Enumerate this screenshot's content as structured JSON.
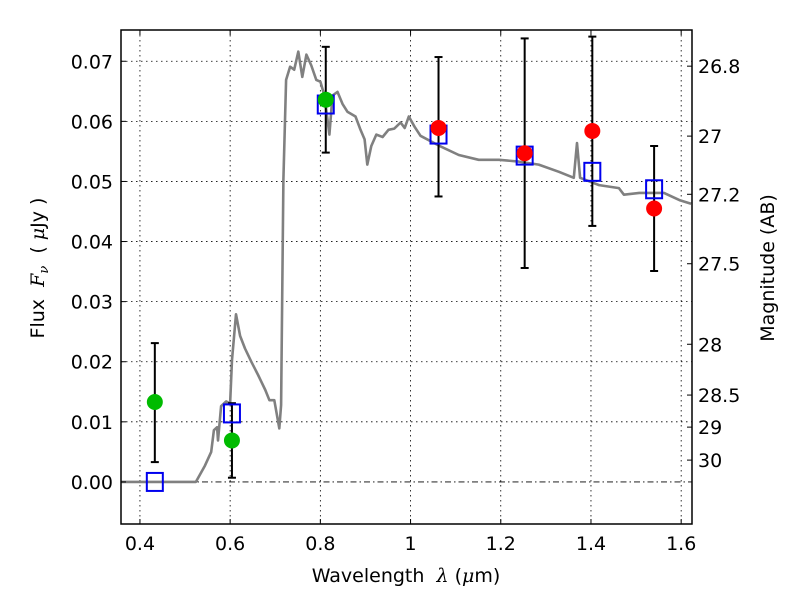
{
  "chart_data": {
    "type": "scatter",
    "title": "",
    "xlabel": "Wavelength  λ (μm)",
    "ylabel": "Flux  F_ν  ( μJy )",
    "ylabel_parts": {
      "prefix": "Flux  ",
      "symbol": "F",
      "subscript": "ν",
      "unit_open": "  ( ",
      "unit_mu": "μ",
      "unit_rest": "Jy )"
    },
    "xlabel_parts": {
      "prefix": "Wavelength  ",
      "symbol": "λ",
      "unit_open": " (",
      "unit_mu": "μ",
      "unit_rest": "m)"
    },
    "y2label": "Magnitude (AB)",
    "xlim": [
      0.358,
      1.624
    ],
    "ylim": [
      -0.007,
      0.0752
    ],
    "grid": true,
    "xticks": [
      {
        "value": 0.4,
        "label": "0.4"
      },
      {
        "value": 0.6,
        "label": "0.6"
      },
      {
        "value": 0.8,
        "label": "0.8"
      },
      {
        "value": 1.0,
        "label": "1"
      },
      {
        "value": 1.2,
        "label": "1.2"
      },
      {
        "value": 1.4,
        "label": "1.4"
      },
      {
        "value": 1.6,
        "label": "1.6"
      }
    ],
    "yticks": [
      {
        "value": 0.0,
        "label": "0.00"
      },
      {
        "value": 0.01,
        "label": "0.01"
      },
      {
        "value": 0.02,
        "label": "0.02"
      },
      {
        "value": 0.03,
        "label": "0.03"
      },
      {
        "value": 0.04,
        "label": "0.04"
      },
      {
        "value": 0.05,
        "label": "0.05"
      },
      {
        "value": 0.06,
        "label": "0.06"
      },
      {
        "value": 0.07,
        "label": "0.07"
      }
    ],
    "y2ticks": [
      {
        "magnitude": 26.8,
        "label": "26.8"
      },
      {
        "magnitude": 27.0,
        "label": "27"
      },
      {
        "magnitude": 27.2,
        "label": "27.2"
      },
      {
        "magnitude": 27.5,
        "label": "27.5"
      },
      {
        "magnitude": 28.0,
        "label": "28"
      },
      {
        "magnitude": 28.5,
        "label": "28.5"
      },
      {
        "magnitude": 29.0,
        "label": "29"
      },
      {
        "magnitude": 30.0,
        "label": "30"
      }
    ],
    "ab_zero_point": 23.9,
    "colors": {
      "spectrum": "#808080",
      "green": "#00bb00",
      "red": "#ff0000",
      "model": "#0000ee",
      "errorbar": "#000000",
      "grid": "#000000"
    },
    "series": [
      {
        "name": "spectrum",
        "kind": "line",
        "x": [
          0.353,
          0.524,
          0.544,
          0.558,
          0.564,
          0.571,
          0.573,
          0.58,
          0.591,
          0.6,
          0.604,
          0.613,
          0.622,
          0.633,
          0.647,
          0.662,
          0.678,
          0.687,
          0.698,
          0.709,
          0.713,
          0.718,
          0.724,
          0.733,
          0.742,
          0.751,
          0.76,
          0.769,
          0.78,
          0.791,
          0.8,
          0.809,
          0.82,
          0.827,
          0.838,
          0.849,
          0.86,
          0.878,
          0.889,
          0.898,
          0.904,
          0.913,
          0.924,
          0.938,
          0.951,
          0.964,
          0.978,
          0.987,
          0.996,
          1.009,
          1.022,
          1.062,
          1.107,
          1.151,
          1.196,
          1.24,
          1.284,
          1.329,
          1.362,
          1.369,
          1.376,
          1.418,
          1.462,
          1.473,
          1.507,
          1.562,
          1.596,
          1.622
        ],
        "y": [
          0.0,
          0.0,
          0.0027,
          0.005,
          0.0086,
          0.0091,
          0.0069,
          0.0126,
          0.0134,
          0.013,
          0.0203,
          0.0279,
          0.0243,
          0.0222,
          0.02,
          0.0178,
          0.0153,
          0.0136,
          0.0136,
          0.0089,
          0.0128,
          0.0503,
          0.0669,
          0.0691,
          0.0686,
          0.0716,
          0.0674,
          0.0711,
          0.0693,
          0.0669,
          0.0666,
          0.0643,
          0.0578,
          0.0643,
          0.0649,
          0.0629,
          0.0616,
          0.0608,
          0.0586,
          0.057,
          0.0528,
          0.0559,
          0.0578,
          0.0574,
          0.0586,
          0.0588,
          0.0598,
          0.0589,
          0.0608,
          0.0591,
          0.0576,
          0.056,
          0.0544,
          0.0536,
          0.0536,
          0.0533,
          0.0528,
          0.0516,
          0.0506,
          0.0564,
          0.0506,
          0.0494,
          0.0489,
          0.0478,
          0.0481,
          0.0481,
          0.0469,
          0.0463
        ]
      },
      {
        "name": "observed (green)",
        "kind": "points",
        "color": "green",
        "x": [
          0.433,
          0.604,
          0.812
        ],
        "y": [
          0.0133,
          0.0069,
          0.0636
        ],
        "yerr_low": [
          0.0033,
          0.0007,
          0.0548
        ],
        "yerr_high": [
          0.0231,
          0.0131,
          0.0724
        ]
      },
      {
        "name": "observed (red)",
        "kind": "points",
        "color": "red",
        "x": [
          1.062,
          1.253,
          1.403,
          1.54
        ],
        "y": [
          0.0589,
          0.0547,
          0.0584,
          0.0455
        ],
        "yerr_low": [
          0.0475,
          0.0356,
          0.0426,
          0.0351
        ],
        "yerr_high": [
          0.0707,
          0.0738,
          0.0741,
          0.0559
        ]
      },
      {
        "name": "model photometry",
        "kind": "open-squares",
        "color": "model",
        "x": [
          0.433,
          0.604,
          0.812,
          1.062,
          1.253,
          1.403,
          1.54
        ],
        "y": [
          0.0,
          0.0114,
          0.0628,
          0.0578,
          0.0543,
          0.0516,
          0.0487
        ]
      }
    ]
  }
}
